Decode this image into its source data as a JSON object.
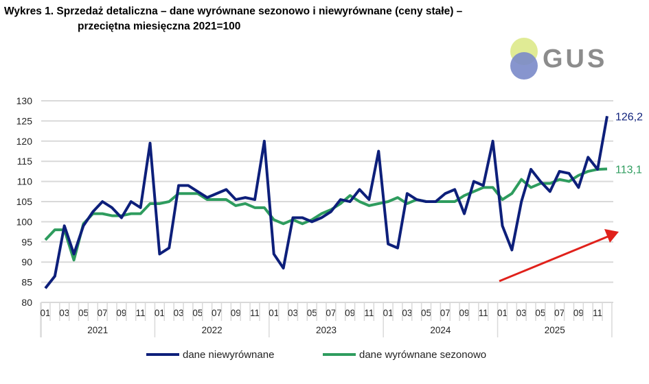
{
  "title_line1": "Wykres 1. Sprzedaż detaliczna – dane wyrównane sezonowo i niewyrównane (ceny stałe) –",
  "title_line2": "przeciętna miesięczna 2021=100",
  "logo_text": "GUS",
  "chart_data": {
    "type": "line",
    "title": "Sprzedaż detaliczna – dane wyrównane sezonowo i niewyrównane (ceny stałe) – przeciętna miesięczna 2021=100",
    "ylim": [
      80,
      130
    ],
    "yticks": [
      80,
      85,
      90,
      95,
      100,
      105,
      110,
      115,
      120,
      125,
      130
    ],
    "years": [
      "2021",
      "2022",
      "2023",
      "2024",
      "2025"
    ],
    "month_ticks": [
      "01",
      "03",
      "05",
      "07",
      "09",
      "11"
    ],
    "grid": true,
    "legend_position": "bottom",
    "series": [
      {
        "name": "dane niewyrównane",
        "color": "#0d1f7a",
        "end_label": "126,2",
        "values": [
          83.5,
          86.5,
          99,
          92,
          99,
          102.5,
          105,
          103.5,
          101,
          105,
          103.5,
          119.5,
          92,
          93.5,
          109,
          109,
          107.5,
          106,
          107,
          108,
          105.5,
          106,
          105.5,
          120,
          92,
          88.5,
          101,
          101,
          100,
          101,
          102.5,
          105.5,
          105,
          108,
          105.5,
          117.5,
          94.5,
          93.5,
          107,
          105.5,
          105,
          105,
          107,
          108,
          102,
          110,
          109,
          120,
          99,
          93,
          105,
          113,
          110,
          107.5,
          112.5,
          112,
          108.5,
          116,
          113,
          126.2
        ]
      },
      {
        "name": "dane wyrównane sezonowo",
        "color": "#2e9c5e",
        "end_label": "113,1",
        "values": [
          95.5,
          98,
          98,
          90.5,
          99.5,
          102,
          102,
          101.5,
          101.5,
          102,
          102,
          104.5,
          104.5,
          105,
          107,
          107,
          107,
          105.5,
          105.5,
          105.5,
          104,
          104.5,
          103.5,
          103.5,
          100.5,
          99.5,
          100.5,
          99.5,
          100.5,
          102,
          103,
          104.5,
          106.5,
          105,
          104,
          104.5,
          105,
          106,
          104.5,
          105.5,
          105,
          105,
          105,
          105,
          106.5,
          107.5,
          108.5,
          108.5,
          105.5,
          107,
          110.5,
          108.5,
          109.5,
          109.5,
          110.5,
          110,
          111.5,
          112.5,
          113,
          113.1
        ]
      }
    ]
  }
}
